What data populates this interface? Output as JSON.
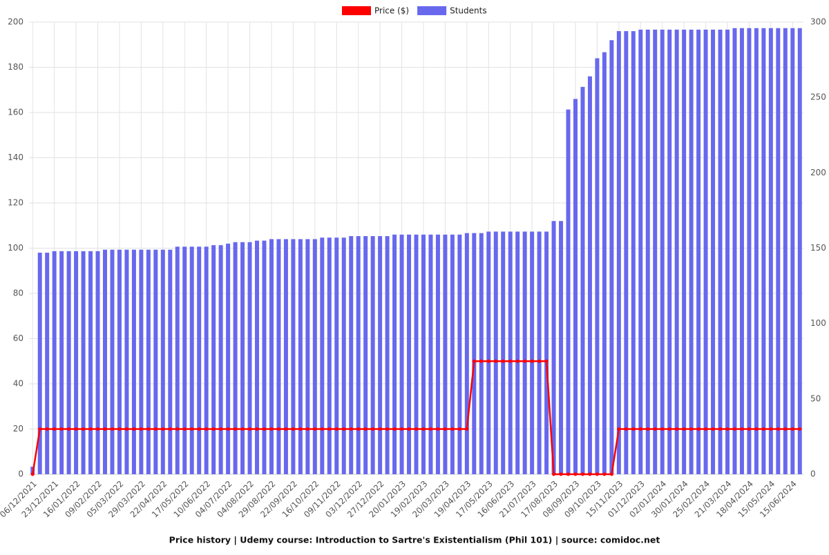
{
  "chart_data": {
    "type": "bar",
    "title": "Price history | Udemy course: Introduction to Sartre's Existentialism (Phil 101) | source: comidoc.net",
    "categories": [
      "06/12/2021",
      null,
      null,
      "23/12/2021",
      null,
      null,
      "16/01/2022",
      null,
      null,
      "09/02/2022",
      null,
      null,
      "05/03/2022",
      null,
      null,
      "29/03/2022",
      null,
      null,
      "22/04/2022",
      null,
      null,
      "17/05/2022",
      null,
      null,
      "10/06/2022",
      null,
      null,
      "04/07/2022",
      null,
      null,
      "04/08/2022",
      null,
      null,
      "29/08/2022",
      null,
      null,
      "22/09/2022",
      null,
      null,
      "16/10/2022",
      null,
      null,
      "09/11/2022",
      null,
      null,
      "03/12/2022",
      null,
      null,
      "27/12/2022",
      null,
      null,
      "20/01/2023",
      null,
      null,
      "19/02/2023",
      null,
      null,
      "20/03/2023",
      null,
      null,
      "19/04/2023",
      null,
      null,
      "17/05/2023",
      null,
      null,
      "16/06/2023",
      null,
      null,
      "21/07/2023",
      null,
      null,
      "17/08/2023",
      null,
      null,
      "08/09/2023",
      null,
      null,
      "09/10/2023",
      null,
      null,
      "15/11/2023",
      null,
      null,
      "01/12/2023",
      null,
      null,
      "02/01/2024",
      null,
      null,
      "30/01/2024",
      null,
      null,
      "25/02/2024",
      null,
      null,
      "21/03/2024",
      null,
      null,
      "18/04/2024",
      null,
      null,
      "15/05/2024",
      null,
      null,
      "15/06/2024",
      null
    ],
    "series": [
      {
        "name": "Price ($)",
        "type": "line",
        "color": "#ff0000",
        "axis": "y",
        "values": [
          0,
          20,
          20,
          20,
          20,
          20,
          20,
          20,
          20,
          20,
          20,
          20,
          20,
          20,
          20,
          20,
          20,
          20,
          20,
          20,
          20,
          20,
          20,
          20,
          20,
          20,
          20,
          20,
          20,
          20,
          20,
          20,
          20,
          20,
          20,
          20,
          20,
          20,
          20,
          20,
          20,
          20,
          20,
          20,
          20,
          20,
          20,
          20,
          20,
          20,
          20,
          20,
          20,
          20,
          20,
          20,
          20,
          20,
          20,
          20,
          20,
          50,
          50,
          50,
          50,
          50,
          50,
          50,
          50,
          50,
          50,
          50,
          0,
          0,
          0,
          0,
          0,
          0,
          0,
          0,
          0,
          20,
          20,
          20,
          20,
          20,
          20,
          20,
          20,
          20,
          20,
          20,
          20,
          20,
          20,
          20,
          20,
          20,
          20,
          20,
          20,
          20,
          20,
          20,
          20,
          20,
          20
        ]
      },
      {
        "name": "Students",
        "type": "bar",
        "color": "#6868ee",
        "axis": "y2",
        "values": [
          5,
          147,
          147,
          148,
          148,
          148,
          148,
          148,
          148,
          148,
          149,
          149,
          149,
          149,
          149,
          149,
          149,
          149,
          149,
          149,
          151,
          151,
          151,
          151,
          151,
          152,
          152,
          153,
          154,
          154,
          154,
          155,
          155,
          156,
          156,
          156,
          156,
          156,
          156,
          156,
          157,
          157,
          157,
          157,
          158,
          158,
          158,
          158,
          158,
          158,
          159,
          159,
          159,
          159,
          159,
          159,
          159,
          159,
          159,
          159,
          160,
          160,
          160,
          161,
          161,
          161,
          161,
          161,
          161,
          161,
          161,
          161,
          168,
          168,
          242,
          249,
          257,
          264,
          276,
          280,
          288,
          294,
          294,
          294,
          295,
          295,
          295,
          295,
          295,
          295,
          295,
          295,
          295,
          295,
          295,
          295,
          295,
          296,
          296,
          296,
          296,
          296,
          296,
          296,
          296,
          296,
          296
        ]
      }
    ],
    "ylim": [
      0,
      200
    ],
    "yticks": [
      0,
      20,
      40,
      60,
      80,
      100,
      120,
      140,
      160,
      180,
      200
    ],
    "y2lim": [
      0,
      300
    ],
    "y2ticks": [
      0,
      50,
      100,
      150,
      200,
      250,
      300
    ],
    "grid": true,
    "legend": "top"
  }
}
